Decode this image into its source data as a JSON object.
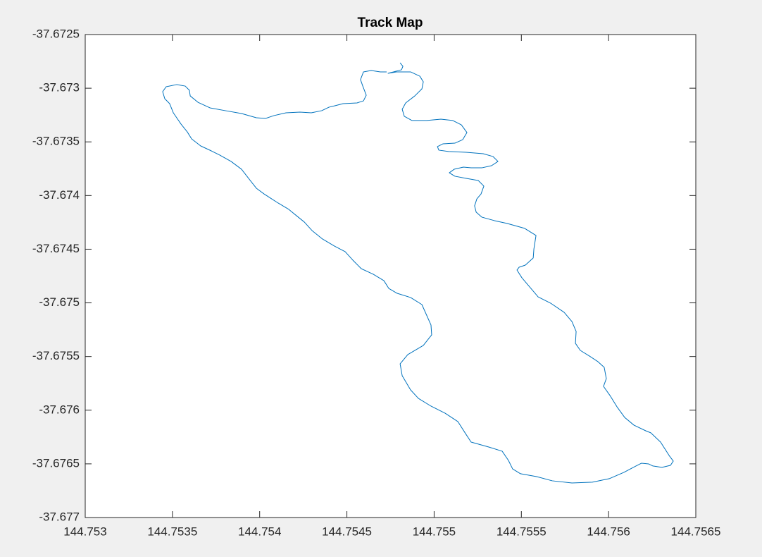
{
  "chart_data": {
    "type": "line",
    "title": "Track Map",
    "color": "#0072bd",
    "xlim": [
      144.753,
      144.7565
    ],
    "xticks": [
      144.753,
      144.7535,
      144.754,
      144.7545,
      144.755,
      144.7555,
      144.756,
      144.7565
    ],
    "ylim": [
      -37.677,
      -37.6725
    ],
    "yticks": [
      -37.677,
      -37.6765,
      -37.676,
      -37.6755,
      -37.675,
      -37.6745,
      -37.674,
      -37.6735,
      -37.673,
      -37.6725
    ],
    "grid": false,
    "x": [
      144.754805,
      144.754821,
      144.754813,
      144.754736,
      144.754784,
      144.754865,
      144.754918,
      144.754938,
      144.75493,
      144.754889,
      144.754837,
      144.754817,
      144.754829,
      144.754873,
      144.754958,
      144.755039,
      144.755107,
      144.755156,
      144.755188,
      144.755164,
      144.755119,
      144.755051,
      144.755019,
      144.755027,
      144.755083,
      144.755184,
      144.755281,
      144.755337,
      144.755366,
      144.755329,
      144.755273,
      144.755212,
      144.755168,
      144.755115,
      144.755087,
      144.755119,
      144.755184,
      144.755253,
      144.755285,
      144.755269,
      144.755245,
      144.755232,
      144.755241,
      144.755273,
      144.755346,
      144.755418,
      144.755519,
      144.755584,
      144.755572,
      144.755568,
      144.755523,
      144.755487,
      144.755475,
      144.755503,
      144.755551,
      144.755596,
      144.755668,
      144.755745,
      144.75579,
      144.755814,
      144.75581,
      144.755838,
      144.75589,
      144.755939,
      144.755975,
      144.755987,
      144.755971,
      144.756008,
      144.756048,
      144.756092,
      144.756145,
      144.756213,
      144.756242,
      144.756298,
      144.756347,
      144.756371,
      144.756355,
      144.756306,
      144.756254,
      144.75623,
      144.756189,
      144.756157,
      144.756088,
      144.756004,
      144.755907,
      144.75579,
      144.755677,
      144.755588,
      144.755495,
      144.75545,
      144.755426,
      144.75539,
      144.755313,
      144.755212,
      144.75518,
      144.755136,
      144.755063,
      144.754982,
      144.75491,
      144.754865,
      144.754817,
      144.754805,
      144.754849,
      144.754938,
      144.754986,
      144.754982,
      144.75493,
      144.754865,
      144.754788,
      144.75474,
      144.754712,
      144.754651,
      144.754582,
      144.754534,
      144.75449,
      144.754429,
      144.75436,
      144.7543,
      144.754256,
      144.754211,
      144.754167,
      144.754106,
      144.754025,
      144.753981,
      144.753949,
      144.753896,
      144.753836,
      144.753771,
      144.753723,
      144.753662,
      144.75361,
      144.753585,
      144.753549,
      144.753505,
      144.753484,
      144.753456,
      144.753444,
      144.753464,
      144.753525,
      144.753573,
      144.753597,
      144.753602,
      144.753646,
      144.753715,
      144.753803,
      144.753896,
      144.753981,
      144.754033,
      144.754082,
      144.754151,
      144.754231,
      144.754296,
      144.754356,
      144.754397,
      144.754433,
      144.754478,
      144.754558,
      144.754595,
      144.754611,
      144.754591,
      144.754578,
      144.754595,
      144.754639,
      144.754692,
      144.754728
    ],
    "values": [
      -37.672763,
      -37.672796,
      -37.672828,
      -37.672861,
      -37.672848,
      -37.672848,
      -37.672888,
      -37.67294,
      -37.673006,
      -37.673072,
      -37.673137,
      -37.673196,
      -37.673262,
      -37.673301,
      -37.673301,
      -37.673288,
      -37.673301,
      -37.673341,
      -37.673413,
      -37.673479,
      -37.673512,
      -37.673518,
      -37.673544,
      -37.673577,
      -37.67359,
      -37.673597,
      -37.67361,
      -37.673636,
      -37.673682,
      -37.673722,
      -37.673742,
      -37.673742,
      -37.673735,
      -37.673755,
      -37.673788,
      -37.67382,
      -37.67384,
      -37.67386,
      -37.673912,
      -37.673985,
      -37.674031,
      -37.674096,
      -37.674155,
      -37.674201,
      -37.674234,
      -37.67426,
      -37.674306,
      -37.674372,
      -37.674497,
      -37.674582,
      -37.674648,
      -37.674668,
      -37.674694,
      -37.674766,
      -37.674858,
      -37.674944,
      -37.675003,
      -37.675088,
      -37.675174,
      -37.675266,
      -37.675377,
      -37.675443,
      -37.675495,
      -37.675548,
      -37.675601,
      -37.675706,
      -37.675778,
      -37.675863,
      -37.675968,
      -37.676067,
      -37.676139,
      -37.676192,
      -37.676211,
      -37.676297,
      -37.676422,
      -37.676474,
      -37.676514,
      -37.676533,
      -37.67652,
      -37.676501,
      -37.676494,
      -37.67652,
      -37.676579,
      -37.676638,
      -37.676671,
      -37.676678,
      -37.676658,
      -37.676619,
      -37.676592,
      -37.676547,
      -37.676468,
      -37.676382,
      -37.676343,
      -37.676297,
      -37.676218,
      -37.676106,
      -37.676028,
      -37.675962,
      -37.67589,
      -37.675811,
      -37.675679,
      -37.675568,
      -37.675482,
      -37.675397,
      -37.675298,
      -37.675206,
      -37.675016,
      -37.67495,
      -37.674911,
      -37.674865,
      -37.674793,
      -37.674733,
      -37.674681,
      -37.674602,
      -37.674523,
      -37.674471,
      -37.674405,
      -37.674326,
      -37.674247,
      -37.674188,
      -37.674129,
      -37.67407,
      -37.673985,
      -37.673932,
      -37.673866,
      -37.673755,
      -37.673682,
      -37.673623,
      -37.673584,
      -37.673538,
      -37.673472,
      -37.673407,
      -37.673334,
      -37.673229,
      -37.673144,
      -37.673098,
      -37.673032,
      -37.672986,
      -37.672966,
      -37.67298,
      -37.673019,
      -37.673072,
      -37.673131,
      -37.673183,
      -37.673209,
      -37.673236,
      -37.673275,
      -37.673282,
      -37.673255,
      -37.673229,
      -37.673223,
      -37.673229,
      -37.673209,
      -37.673177,
      -37.673163,
      -37.673144,
      -37.673137,
      -37.673118,
      -37.673065,
      -37.67298,
      -37.67292,
      -37.672848,
      -37.672835,
      -37.672848,
      -37.672848
    ]
  }
}
